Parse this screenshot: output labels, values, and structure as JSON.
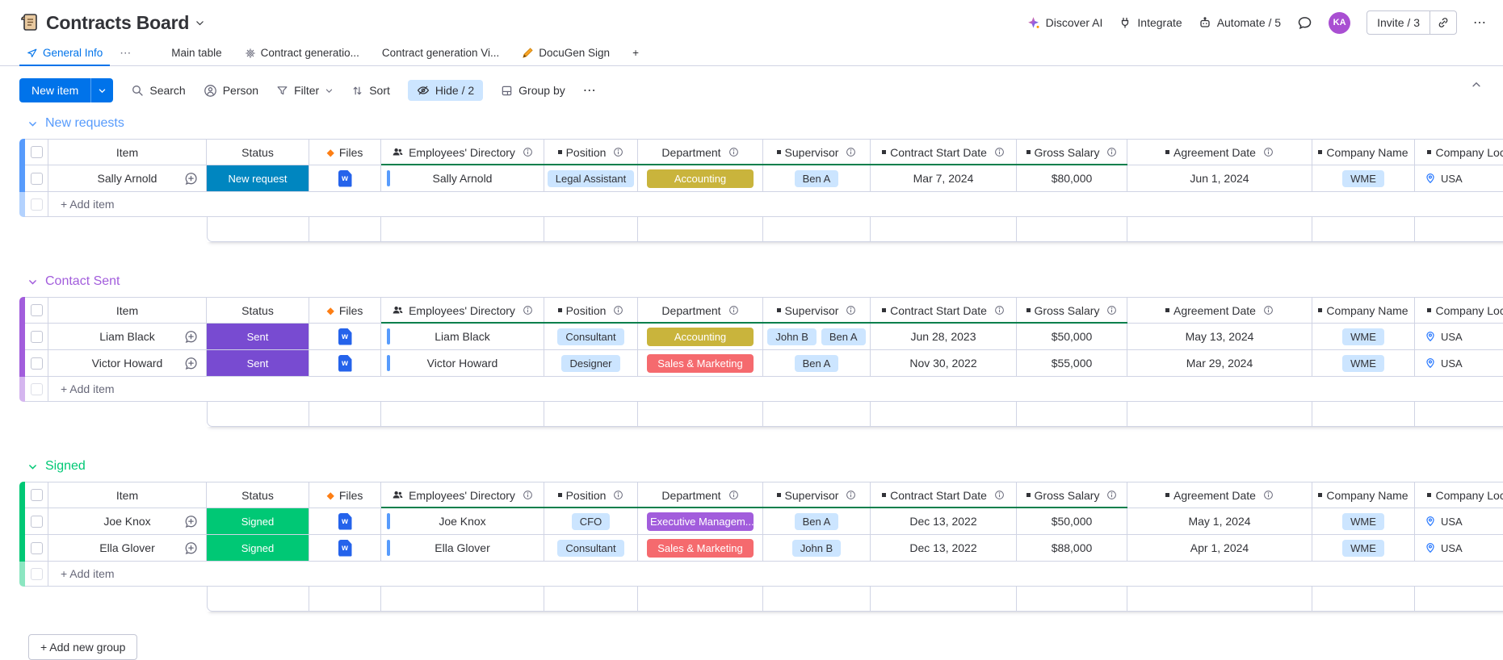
{
  "colors": {
    "accent": "#0073ea",
    "chip": "#cce5ff",
    "link_bar": "#579bfc",
    "mirror_line": "#037f4c",
    "border": "#d0d4e4",
    "word_file": "#2563eb",
    "location_pin": "#2979ff",
    "hide_active_bg": "#cce5ff",
    "avatar_bg": "#a94fd2",
    "files_diamond": "#fd7e14"
  },
  "header": {
    "title": "Contracts Board",
    "actions": {
      "discover_ai": "Discover AI",
      "integrate": "Integrate",
      "automate": "Automate / 5"
    },
    "invite_label": "Invite / 3",
    "avatar_initials": "KA",
    "more": "⋯"
  },
  "tabs": [
    {
      "label": "General Info",
      "icon": "pin",
      "active": true,
      "menu": "⋯"
    },
    {
      "label": "Main table"
    },
    {
      "label": "Contract generatio...",
      "icon": "gear"
    },
    {
      "label": "Contract generation Vi..."
    },
    {
      "label": "DocuGen Sign",
      "icon": "pen"
    },
    {
      "label": "+",
      "add": true
    }
  ],
  "toolbar": {
    "new_item": "New item",
    "search": "Search",
    "person": "Person",
    "filter": "Filter",
    "sort": "Sort",
    "hide": "Hide / 2",
    "group_by": "Group by",
    "more": "⋯"
  },
  "columns": [
    {
      "key": "item",
      "label": "Item"
    },
    {
      "key": "status",
      "label": "Status"
    },
    {
      "key": "files",
      "label": "Files",
      "icon": "diamond"
    },
    {
      "key": "directory",
      "label": "Employees' Directory",
      "icon": "people",
      "info": true
    },
    {
      "key": "position",
      "label": "Position",
      "mirror": true,
      "info": true
    },
    {
      "key": "department",
      "label": "Department",
      "info": true
    },
    {
      "key": "supervisor",
      "label": "Supervisor",
      "mirror": true,
      "info": true
    },
    {
      "key": "start_date",
      "label": "Contract Start Date",
      "mirror": true,
      "info": true
    },
    {
      "key": "salary",
      "label": "Gross Salary",
      "mirror": true,
      "info": true
    },
    {
      "key": "agreement",
      "label": "Agreement Date",
      "mirror": true,
      "info": true
    },
    {
      "key": "company",
      "label": "Company Name",
      "mirror": true
    },
    {
      "key": "location",
      "label": "Company Locat",
      "mirror": true
    }
  ],
  "board": {
    "add_item_label": "+ Add item",
    "add_group_label": "+ Add new group"
  },
  "groups": [
    {
      "name": "New requests",
      "color": "#579bfc",
      "rows": [
        {
          "item": "Sally Arnold",
          "status": "New request",
          "status_color": "#0086c0",
          "file": "w",
          "directory": "Sally Arnold",
          "position": "Legal Assistant",
          "department": "Accounting",
          "department_color": "#c9b43c",
          "supervisors": [
            "Ben A"
          ],
          "start_date": "Mar 7, 2024",
          "salary": "$80,000",
          "agreement": "Jun 1, 2024",
          "company": "WME",
          "location": "USA"
        }
      ]
    },
    {
      "name": "Contact Sent",
      "color": "#a25ddc",
      "rows": [
        {
          "item": "Liam Black",
          "status": "Sent",
          "status_color": "#784bd1",
          "file": "w",
          "directory": "Liam Black",
          "position": "Consultant",
          "department": "Accounting",
          "department_color": "#c9b43c",
          "supervisors": [
            "John B",
            "Ben A"
          ],
          "start_date": "Jun 28, 2023",
          "salary": "$50,000",
          "agreement": "May 13, 2024",
          "company": "WME",
          "location": "USA"
        },
        {
          "item": "Victor Howard",
          "status": "Sent",
          "status_color": "#784bd1",
          "file": "w",
          "directory": "Victor Howard",
          "position": "Designer",
          "department": "Sales & Marketing",
          "department_color": "#f56a6e",
          "supervisors": [
            "Ben A"
          ],
          "start_date": "Nov 30, 2022",
          "salary": "$55,000",
          "agreement": "Mar 29, 2024",
          "company": "WME",
          "location": "USA"
        }
      ]
    },
    {
      "name": "Signed",
      "color": "#00c875",
      "rows": [
        {
          "item": "Joe Knox",
          "status": "Signed",
          "status_color": "#00c875",
          "file": "w",
          "directory": "Joe Knox",
          "position": "CFO",
          "department": "Executive Managem...",
          "department_color": "#a25ddc",
          "supervisors": [
            "Ben A"
          ],
          "start_date": "Dec 13, 2022",
          "salary": "$50,000",
          "agreement": "May 1, 2024",
          "company": "WME",
          "location": "USA"
        },
        {
          "item": "Ella Glover",
          "status": "Signed",
          "status_color": "#00c875",
          "file": "w",
          "directory": "Ella Glover",
          "position": "Consultant",
          "department": "Sales & Marketing",
          "department_color": "#f56a6e",
          "supervisors": [
            "John B"
          ],
          "start_date": "Dec 13, 2022",
          "salary": "$88,000",
          "agreement": "Apr 1, 2024",
          "company": "WME",
          "location": "USA"
        }
      ]
    }
  ]
}
